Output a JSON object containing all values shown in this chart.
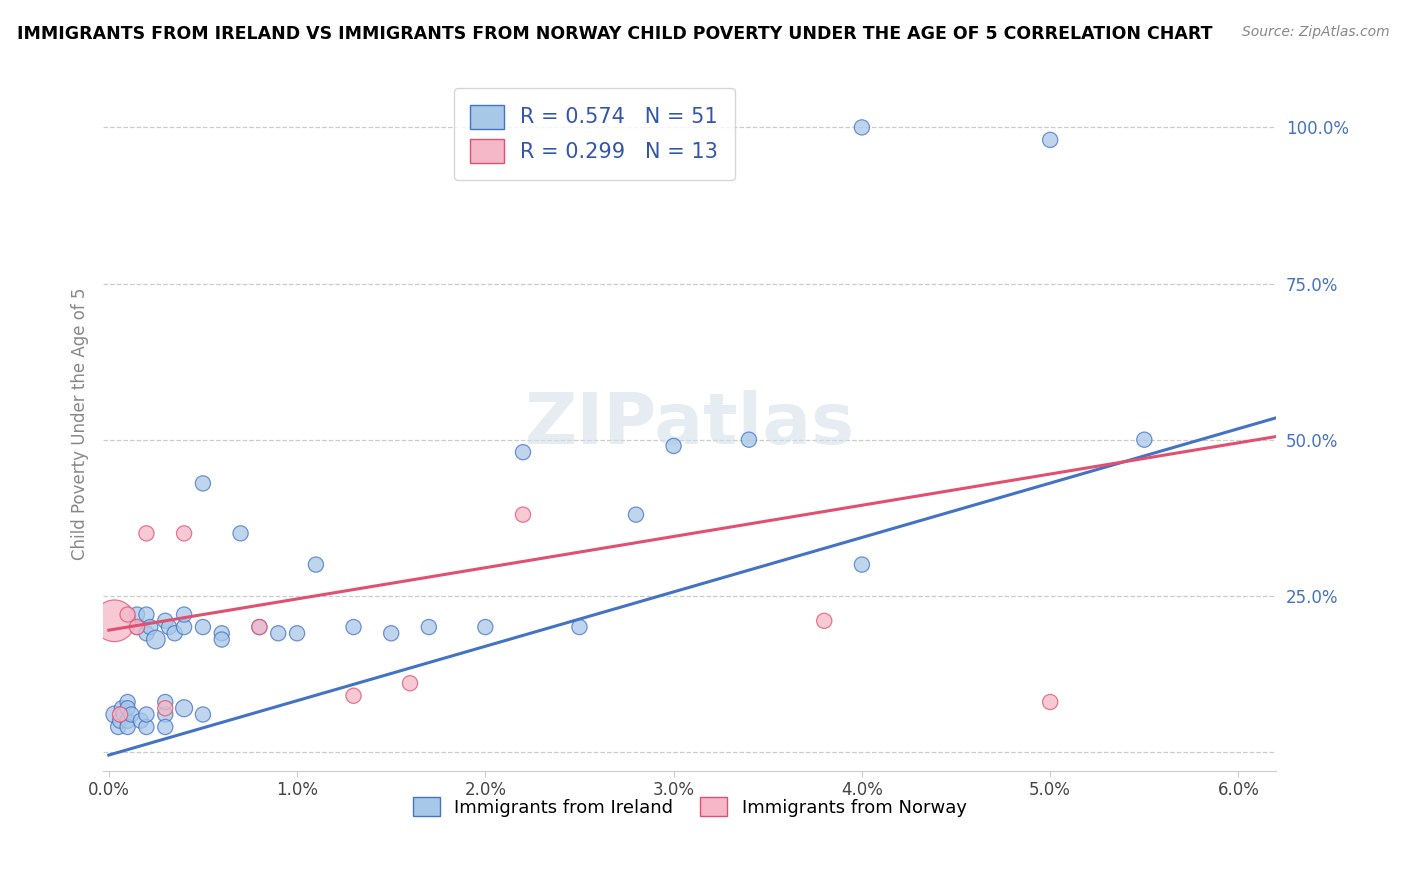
{
  "title": "IMMIGRANTS FROM IRELAND VS IMMIGRANTS FROM NORWAY CHILD POVERTY UNDER THE AGE OF 5 CORRELATION CHART",
  "source": "Source: ZipAtlas.com",
  "ylabel": "Child Poverty Under the Age of 5",
  "xlim": [
    -0.0003,
    0.062
  ],
  "ylim": [
    -0.03,
    1.08
  ],
  "xticks": [
    0.0,
    0.01,
    0.02,
    0.03,
    0.04,
    0.05,
    0.06
  ],
  "xticklabels": [
    "0.0%",
    "1.0%",
    "2.0%",
    "3.0%",
    "4.0%",
    "5.0%",
    "6.0%"
  ],
  "ytick_positions": [
    0.0,
    0.25,
    0.5,
    0.75,
    1.0
  ],
  "yticklabels": [
    "",
    "25.0%",
    "50.0%",
    "75.0%",
    "100.0%"
  ],
  "legend1_label1": "R = 0.574   N = 51",
  "legend1_label2": "R = 0.299   N = 13",
  "legend2_labels": [
    "Immigrants from Ireland",
    "Immigrants from Norway"
  ],
  "R_ireland": "0.574",
  "N_ireland": "51",
  "R_norway": "0.299",
  "N_norway": "13",
  "ireland_color": "#a8c8e8",
  "norway_color": "#f5b8c8",
  "ireland_edge_color": "#4472c4",
  "norway_edge_color": "#e05070",
  "ireland_line_color": "#4472c4",
  "norway_line_color": "#e05070",
  "watermark": "ZIPatlas",
  "ireland_trend_x0": 0.0,
  "ireland_trend_y0": -0.005,
  "ireland_trend_x1": 0.062,
  "ireland_trend_y1": 0.535,
  "norway_trend_x0": 0.0,
  "norway_trend_y0": 0.195,
  "norway_trend_x1": 0.062,
  "norway_trend_y1": 0.505,
  "ireland_x": [
    0.0003,
    0.0005,
    0.0006,
    0.0007,
    0.0008,
    0.001,
    0.001,
    0.001,
    0.001,
    0.0012,
    0.0015,
    0.0015,
    0.0017,
    0.002,
    0.002,
    0.002,
    0.002,
    0.0022,
    0.0025,
    0.003,
    0.003,
    0.003,
    0.003,
    0.0032,
    0.0035,
    0.004,
    0.004,
    0.004,
    0.005,
    0.005,
    0.005,
    0.006,
    0.006,
    0.007,
    0.008,
    0.009,
    0.01,
    0.011,
    0.013,
    0.015,
    0.017,
    0.02,
    0.022,
    0.025,
    0.028,
    0.03,
    0.034,
    0.04,
    0.04,
    0.05,
    0.055
  ],
  "ireland_y": [
    0.06,
    0.04,
    0.05,
    0.07,
    0.06,
    0.05,
    0.04,
    0.08,
    0.07,
    0.06,
    0.2,
    0.22,
    0.05,
    0.19,
    0.04,
    0.06,
    0.22,
    0.2,
    0.18,
    0.06,
    0.04,
    0.08,
    0.21,
    0.2,
    0.19,
    0.07,
    0.2,
    0.22,
    0.06,
    0.2,
    0.43,
    0.19,
    0.18,
    0.35,
    0.2,
    0.19,
    0.19,
    0.3,
    0.2,
    0.19,
    0.2,
    0.2,
    0.48,
    0.2,
    0.38,
    0.49,
    0.5,
    0.3,
    1.0,
    0.98,
    0.5
  ],
  "ireland_sizes": [
    150,
    120,
    120,
    120,
    120,
    120,
    120,
    120,
    120,
    120,
    120,
    120,
    120,
    120,
    120,
    120,
    120,
    120,
    180,
    120,
    120,
    120,
    120,
    120,
    120,
    150,
    120,
    120,
    120,
    120,
    120,
    120,
    120,
    120,
    120,
    120,
    120,
    120,
    120,
    120,
    120,
    120,
    120,
    120,
    120,
    120,
    120,
    120,
    120,
    120,
    120
  ],
  "norway_x": [
    0.0003,
    0.0006,
    0.001,
    0.0015,
    0.002,
    0.003,
    0.004,
    0.008,
    0.013,
    0.016,
    0.022,
    0.038,
    0.05
  ],
  "norway_y": [
    0.21,
    0.06,
    0.22,
    0.2,
    0.35,
    0.07,
    0.35,
    0.2,
    0.09,
    0.11,
    0.38,
    0.21,
    0.08
  ],
  "norway_sizes": [
    900,
    120,
    120,
    120,
    120,
    120,
    120,
    120,
    120,
    120,
    120,
    120,
    120
  ]
}
